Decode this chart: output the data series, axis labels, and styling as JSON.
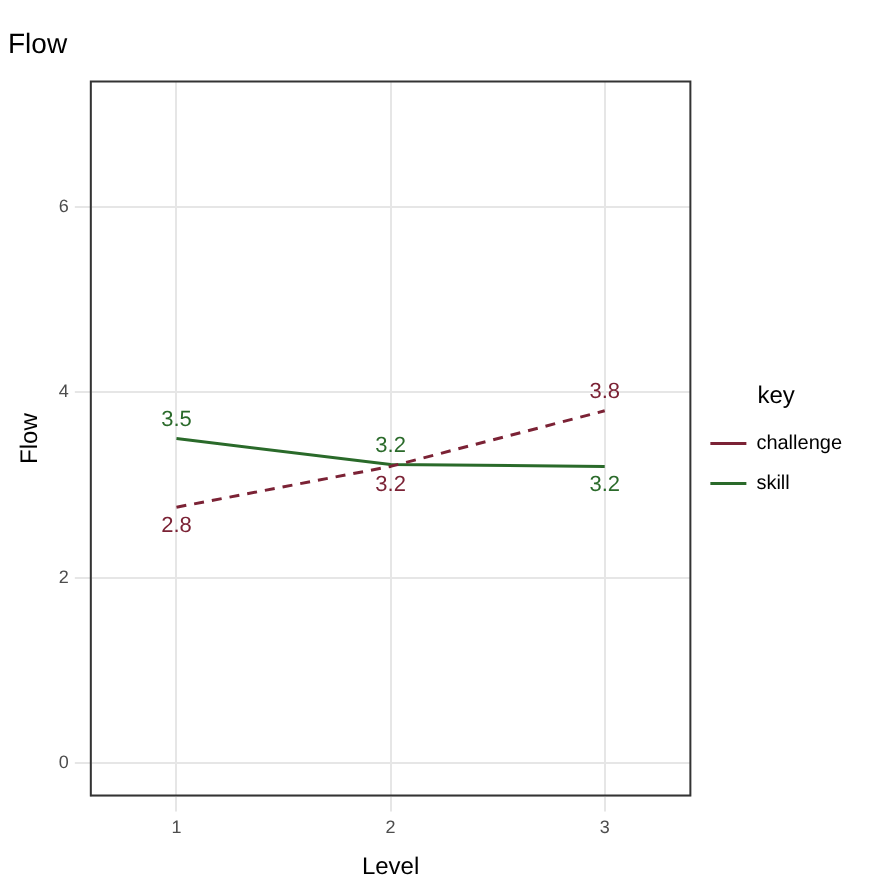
{
  "chart_data": {
    "type": "line",
    "title": "Flow",
    "xlabel": "Level",
    "ylabel": "Flow",
    "legend_title": "key",
    "x": [
      1,
      2,
      3
    ],
    "series": [
      {
        "name": "challenge",
        "color": "#7b2235",
        "line_style": "dashed",
        "values": [
          2.76,
          3.2,
          3.8
        ],
        "value_labels": [
          "2.8",
          "3.2",
          "3.8"
        ]
      },
      {
        "name": "skill",
        "color": "#2a6a2a",
        "line_style": "solid",
        "values": [
          3.5,
          3.22,
          3.2
        ],
        "value_labels": [
          "3.5",
          "3.2",
          "3.2"
        ]
      }
    ],
    "xlim": [
      0.6,
      3.4
    ],
    "xticks": [
      1,
      2,
      3
    ],
    "ylim": [
      -0.35,
      7.35
    ],
    "yticks": [
      0,
      2,
      4,
      6
    ],
    "grid": true,
    "legend": "right",
    "marker": "none"
  }
}
